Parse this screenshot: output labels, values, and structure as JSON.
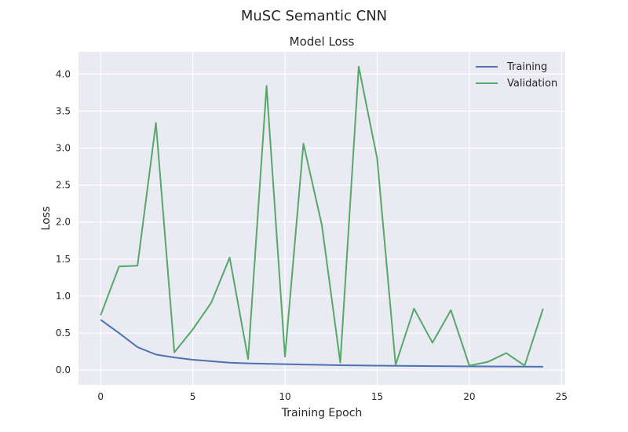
{
  "figure": {
    "suptitle": "MuSC Semantic CNN"
  },
  "chart_data": {
    "type": "line",
    "title": "Model Loss",
    "xlabel": "Training Epoch",
    "ylabel": "Loss",
    "xlim": [
      -1.2,
      25.2
    ],
    "ylim": [
      -0.2,
      4.3
    ],
    "xticks": [
      0,
      5,
      10,
      15,
      20,
      25
    ],
    "yticks": [
      0.0,
      0.5,
      1.0,
      1.5,
      2.0,
      2.5,
      3.0,
      3.5,
      4.0
    ],
    "ytick_labels": [
      "0.0",
      "0.5",
      "1.0",
      "1.5",
      "2.0",
      "2.5",
      "3.0",
      "3.5",
      "4.0"
    ],
    "grid": true,
    "legend_position": "top-right",
    "x": [
      0,
      1,
      2,
      3,
      4,
      5,
      6,
      7,
      8,
      9,
      10,
      11,
      12,
      13,
      14,
      15,
      16,
      17,
      18,
      19,
      20,
      21,
      22,
      23,
      24
    ],
    "series": [
      {
        "name": "Training",
        "color": "#4c72b0",
        "values": [
          0.68,
          0.5,
          0.31,
          0.21,
          0.17,
          0.14,
          0.12,
          0.1,
          0.09,
          0.085,
          0.08,
          0.075,
          0.07,
          0.065,
          0.062,
          0.06,
          0.058,
          0.056,
          0.054,
          0.052,
          0.05,
          0.049,
          0.048,
          0.047,
          0.046
        ]
      },
      {
        "name": "Validation",
        "color": "#55a868",
        "values": [
          0.74,
          1.4,
          1.41,
          3.34,
          0.24,
          0.55,
          0.91,
          1.52,
          0.15,
          3.84,
          0.18,
          3.06,
          1.96,
          0.1,
          4.1,
          2.86,
          0.07,
          0.83,
          0.37,
          0.81,
          0.06,
          0.11,
          0.23,
          0.06,
          0.83
        ]
      }
    ]
  }
}
